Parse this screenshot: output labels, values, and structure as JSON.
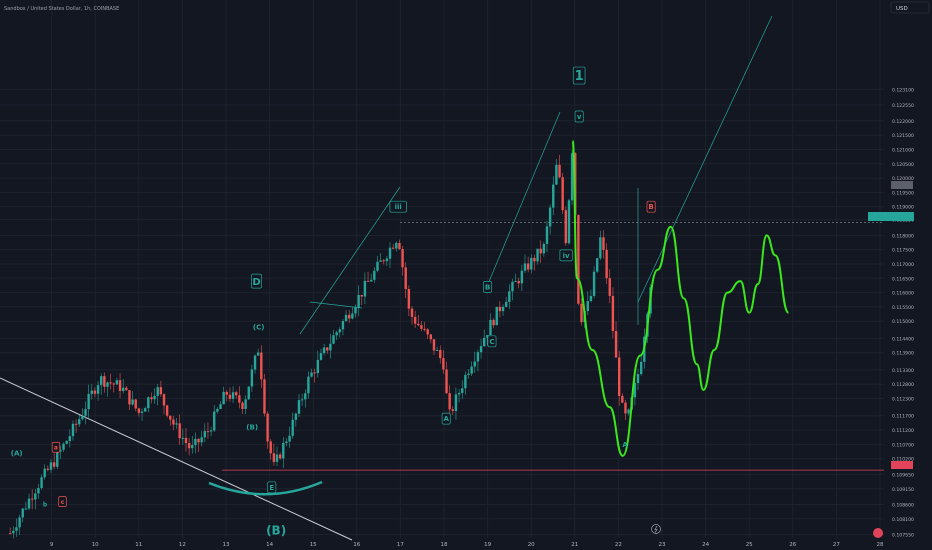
{
  "chart_title": "Sandbox / United States Dollar, 1h, COINBASE",
  "currency_label": "USD",
  "chart_data": {
    "type": "candlestick",
    "title": "Sandbox / United States Dollar, 1h, COINBASE",
    "y_unit": "USD",
    "ylim": [
      0.1075,
      0.1258
    ],
    "xlim": [
      8.0,
      28.0
    ],
    "x_ticks": [
      "9",
      "10",
      "11",
      "12",
      "13",
      "14",
      "15",
      "16",
      "17",
      "18",
      "19",
      "20",
      "21",
      "22",
      "23",
      "24",
      "25",
      "26",
      "27",
      "28"
    ],
    "y_ticks": [
      "0.123100",
      "0.122550",
      "0.122000",
      "0.121500",
      "0.121000",
      "0.120500",
      "0.120000",
      "0.119500",
      "0.119000",
      "0.118550",
      "0.118000",
      "0.117500",
      "0.117000",
      "0.116500",
      "0.116000",
      "0.115500",
      "0.115000",
      "0.114400",
      "0.113900",
      "0.113300",
      "0.112800",
      "0.112300",
      "0.111700",
      "0.111200",
      "0.110700",
      "0.110200",
      "0.109650",
      "0.109150",
      "0.108600",
      "0.108100",
      "0.107550"
    ],
    "current_price_tag": "",
    "price_marker_tag": "",
    "colors": {
      "up": "#26a69a",
      "down": "#ef5350",
      "projection": "#39e71c",
      "support": "#e0435a",
      "trend": "#26a69a"
    },
    "support_level": 0.1098,
    "resistance_level": 0.11845,
    "projection_path": [
      [
        20.95,
        0.1213
      ],
      [
        21.05,
        0.1165
      ],
      [
        21.4,
        0.114
      ],
      [
        21.8,
        0.112
      ],
      [
        22.1,
        0.1103
      ],
      [
        22.5,
        0.1138
      ],
      [
        22.9,
        0.1168
      ],
      [
        23.2,
        0.1183
      ],
      [
        23.5,
        0.1158
      ],
      [
        23.8,
        0.1135
      ],
      [
        23.95,
        0.1126
      ],
      [
        24.2,
        0.114
      ],
      [
        24.5,
        0.116
      ],
      [
        24.8,
        0.1164
      ],
      [
        25.0,
        0.1153
      ],
      [
        25.2,
        0.1163
      ],
      [
        25.4,
        0.118
      ],
      [
        25.6,
        0.1173
      ],
      [
        25.9,
        0.1153
      ]
    ],
    "wave_labels": [
      {
        "text": "1",
        "x": 21.1,
        "y": 0.12358,
        "box": true,
        "color": "#26a69a",
        "size": 13
      },
      {
        "text": "v",
        "x": 21.1,
        "y": 0.12215,
        "box": true,
        "color": "#26a69a",
        "size": 7
      },
      {
        "text": "iii",
        "x": 16.95,
        "y": 0.119,
        "box": true,
        "color": "#26a69a",
        "size": 7
      },
      {
        "text": "iv",
        "x": 20.8,
        "y": 0.1173,
        "box": true,
        "color": "#26a69a",
        "size": 7
      },
      {
        "text": "B",
        "x": 22.75,
        "y": 0.119,
        "box": true,
        "color": "#ef5350",
        "size": 7
      },
      {
        "text": "A",
        "x": 22.15,
        "y": 0.1107,
        "box": false,
        "color": "#26a69a",
        "size": 7
      },
      {
        "text": "D",
        "x": 13.7,
        "y": 0.1164,
        "box": true,
        "color": "#26a69a",
        "size": 10
      },
      {
        "text": "(C)",
        "x": 13.75,
        "y": 0.1148,
        "box": false,
        "color": "#26a69a",
        "size": 7
      },
      {
        "text": "B",
        "x": 19.0,
        "y": 0.1162,
        "box": true,
        "color": "#26a69a",
        "size": 7
      },
      {
        "text": "C",
        "x": 19.1,
        "y": 0.1143,
        "box": true,
        "color": "#26a69a",
        "size": 7
      },
      {
        "text": "A",
        "x": 18.05,
        "y": 0.1116,
        "box": true,
        "color": "#26a69a",
        "size": 7
      },
      {
        "text": "(B)",
        "x": 13.6,
        "y": 0.1113,
        "box": false,
        "color": "#26a69a",
        "size": 7
      },
      {
        "text": "E",
        "x": 14.05,
        "y": 0.1092,
        "box": true,
        "color": "#26a69a",
        "size": 7
      },
      {
        "text": "(A)",
        "x": 8.2,
        "y": 0.1104,
        "box": false,
        "color": "#26a69a",
        "size": 7
      },
      {
        "text": "a",
        "x": 9.1,
        "y": 0.1106,
        "box": true,
        "color": "#ef5350",
        "size": 6
      },
      {
        "text": "b",
        "x": 8.85,
        "y": 0.1086,
        "box": false,
        "color": "#26a69a",
        "size": 6
      },
      {
        "text": "c",
        "x": 9.25,
        "y": 0.1087,
        "box": true,
        "color": "#ef5350",
        "size": 6
      },
      {
        "text": "(B)",
        "x": 14.15,
        "y": 0.1077,
        "box": false,
        "color": "#26a69a",
        "size": 12
      }
    ]
  }
}
